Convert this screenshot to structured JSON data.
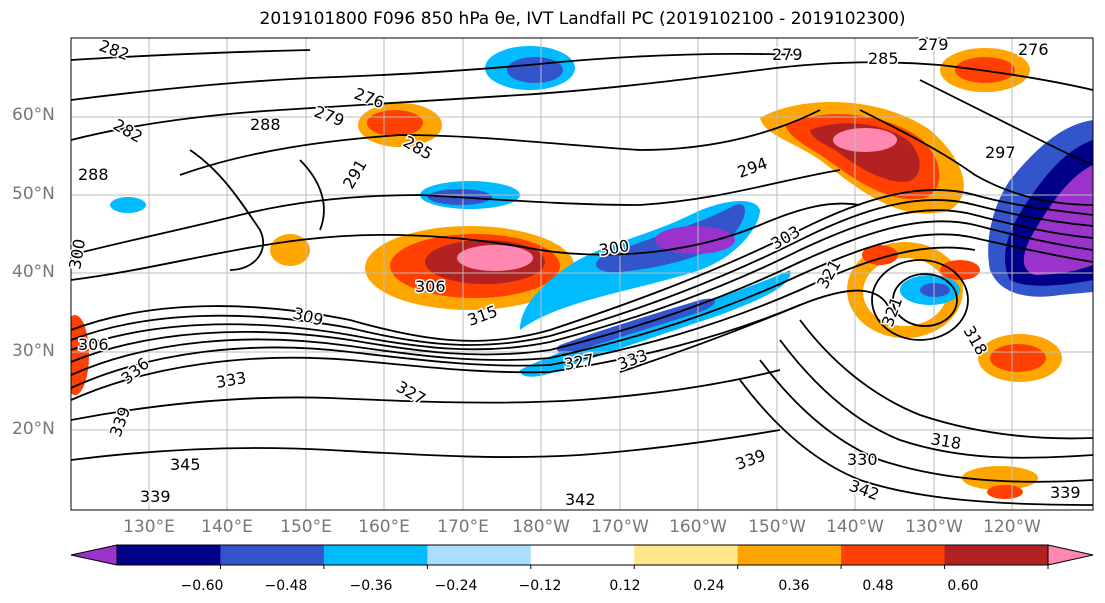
{
  "title": "2019101800 F096 850 hPa θe, IVT Landfall PC (2019102100 - 2019102300)",
  "lat_labels": [
    "60°N",
    "50°N",
    "40°N",
    "30°N",
    "20°N"
  ],
  "lon_labels": [
    "130°E",
    "140°E",
    "150°E",
    "160°E",
    "170°E",
    "180°W",
    "170°W",
    "160°W",
    "150°W",
    "140°W",
    "130°W",
    "120°W"
  ],
  "colorbar": {
    "ticks": [
      "−0.60",
      "−0.48",
      "−0.36",
      "−0.24",
      "−0.12",
      "0.12",
      "0.24",
      "0.36",
      "0.48",
      "0.60"
    ],
    "colors": [
      "#9933cc",
      "#000088",
      "#3355cc",
      "#00bbff",
      "#aaddff",
      "#ffffff",
      "#ffe88a",
      "#ffa500",
      "#ff4000",
      "#b22222",
      "#ff88b0"
    ]
  },
  "contour_labels": [
    {
      "text": "282"
    },
    {
      "text": "279"
    },
    {
      "text": "276"
    },
    {
      "text": "282"
    },
    {
      "text": "288"
    },
    {
      "text": "279"
    },
    {
      "text": "276"
    },
    {
      "text": "285"
    },
    {
      "text": "279"
    },
    {
      "text": "285"
    },
    {
      "text": "291"
    },
    {
      "text": "294"
    },
    {
      "text": "297"
    },
    {
      "text": "300"
    },
    {
      "text": "300"
    },
    {
      "text": "303"
    },
    {
      "text": "306"
    },
    {
      "text": "309"
    },
    {
      "text": "315"
    },
    {
      "text": "321"
    },
    {
      "text": "321"
    },
    {
      "text": "318"
    },
    {
      "text": "306"
    },
    {
      "text": "327"
    },
    {
      "text": "327"
    },
    {
      "text": "333"
    },
    {
      "text": "336"
    },
    {
      "text": "333"
    },
    {
      "text": "339"
    },
    {
      "text": "345"
    },
    {
      "text": "339"
    },
    {
      "text": "342"
    },
    {
      "text": "339"
    },
    {
      "text": "330"
    },
    {
      "text": "342"
    },
    {
      "text": "318"
    },
    {
      "text": "339"
    },
    {
      "text": "288"
    }
  ]
}
